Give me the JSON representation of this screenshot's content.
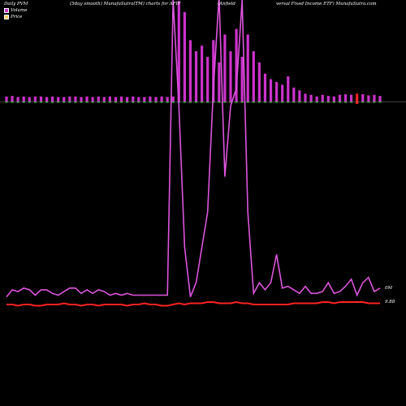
{
  "header": {
    "left": "Daily PVM",
    "center": "(5day smooth) MunafaSutra(TM) charts for AFIF",
    "right_a": "(Anfield",
    "right_b": "versal Fixed Income    ETF) MunafaSutra.com"
  },
  "legend": {
    "volume_label": "Volume",
    "price_label": "Price"
  },
  "labels": {
    "volume_value": "0M",
    "price_value": "9.88"
  },
  "colors": {
    "background": "#000000",
    "volume_bar": "#cc33cc",
    "volume_line": "#dd55dd",
    "price_line": "#ff2222",
    "baseline_up": "#33cc33",
    "baseline_down": "#ff2222"
  },
  "chart_data": {
    "type": "bar+line",
    "x": [
      1,
      2,
      3,
      4,
      5,
      6,
      7,
      8,
      9,
      10,
      11,
      12,
      13,
      14,
      15,
      16,
      17,
      18,
      19,
      20,
      21,
      22,
      23,
      24,
      25,
      26,
      27,
      28,
      29,
      30,
      31,
      32,
      33,
      34,
      35,
      36,
      37,
      38,
      39,
      40,
      41,
      42,
      43,
      44,
      45,
      46,
      47,
      48,
      49,
      50,
      51,
      52,
      53,
      54,
      55,
      56,
      57,
      58,
      59,
      60,
      61,
      62,
      63,
      64,
      65,
      66
    ],
    "series": [
      {
        "name": "Volume",
        "kind": "bar",
        "values": [
          0.9,
          1.0,
          0.8,
          0.9,
          0.8,
          0.9,
          0.9,
          0.8,
          0.9,
          0.8,
          0.8,
          0.9,
          0.9,
          0.8,
          0.9,
          0.8,
          0.9,
          0.8,
          0.9,
          0.8,
          0.9,
          0.8,
          0.9,
          0.8,
          0.8,
          0.9,
          0.8,
          0.9,
          0.8,
          0.9,
          18,
          16,
          11,
          9,
          10,
          8,
          11,
          7,
          12,
          9,
          13,
          8,
          12,
          9,
          7,
          5,
          4,
          3.5,
          3,
          4.5,
          2.5,
          2,
          1.4,
          1.2,
          0.9,
          1.2,
          1.0,
          0.9,
          1.2,
          1.3,
          1.2,
          1.4,
          1.3,
          1.1,
          1.2,
          1.0
        ],
        "down_days": [
          62
        ]
      },
      {
        "name": "Volume (smoothed)",
        "kind": "line",
        "values": [
          0.2,
          0.6,
          0.5,
          0.7,
          0.6,
          0.3,
          0.6,
          0.6,
          0.4,
          0.3,
          0.5,
          0.7,
          0.7,
          0.4,
          0.6,
          0.4,
          0.6,
          0.5,
          0.3,
          0.4,
          0.3,
          0.4,
          0.3,
          0.3,
          0.3,
          0.3,
          0.3,
          0.3,
          0.3,
          17,
          11,
          3,
          0.2,
          1,
          3,
          5,
          12,
          19,
          7,
          11,
          12,
          17,
          5,
          0.4,
          1.0,
          0.6,
          1.0,
          2.6,
          0.7,
          0.8,
          0.6,
          0.4,
          0.8,
          0.4,
          0.4,
          0.5,
          1.0,
          0.4,
          0.5,
          0.8,
          1.2,
          0.3,
          1.0,
          1.3,
          0.5,
          0.7
        ]
      },
      {
        "name": "Price",
        "kind": "line",
        "values": [
          9.86,
          9.86,
          9.85,
          9.86,
          9.86,
          9.85,
          9.85,
          9.86,
          9.86,
          9.86,
          9.87,
          9.86,
          9.86,
          9.85,
          9.86,
          9.86,
          9.85,
          9.86,
          9.86,
          9.86,
          9.86,
          9.85,
          9.86,
          9.86,
          9.87,
          9.86,
          9.86,
          9.85,
          9.85,
          9.86,
          9.87,
          9.86,
          9.87,
          9.87,
          9.87,
          9.88,
          9.88,
          9.87,
          9.87,
          9.87,
          9.88,
          9.87,
          9.87,
          9.86,
          9.86,
          9.86,
          9.86,
          9.86,
          9.86,
          9.86,
          9.87,
          9.87,
          9.87,
          9.87,
          9.87,
          9.88,
          9.88,
          9.87,
          9.88,
          9.88,
          9.88,
          9.88,
          9.88,
          9.87,
          9.87,
          9.87
        ]
      }
    ],
    "ylim_volume": [
      0,
      20
    ],
    "ylim_price": [
      9.8,
      10.0
    ]
  }
}
